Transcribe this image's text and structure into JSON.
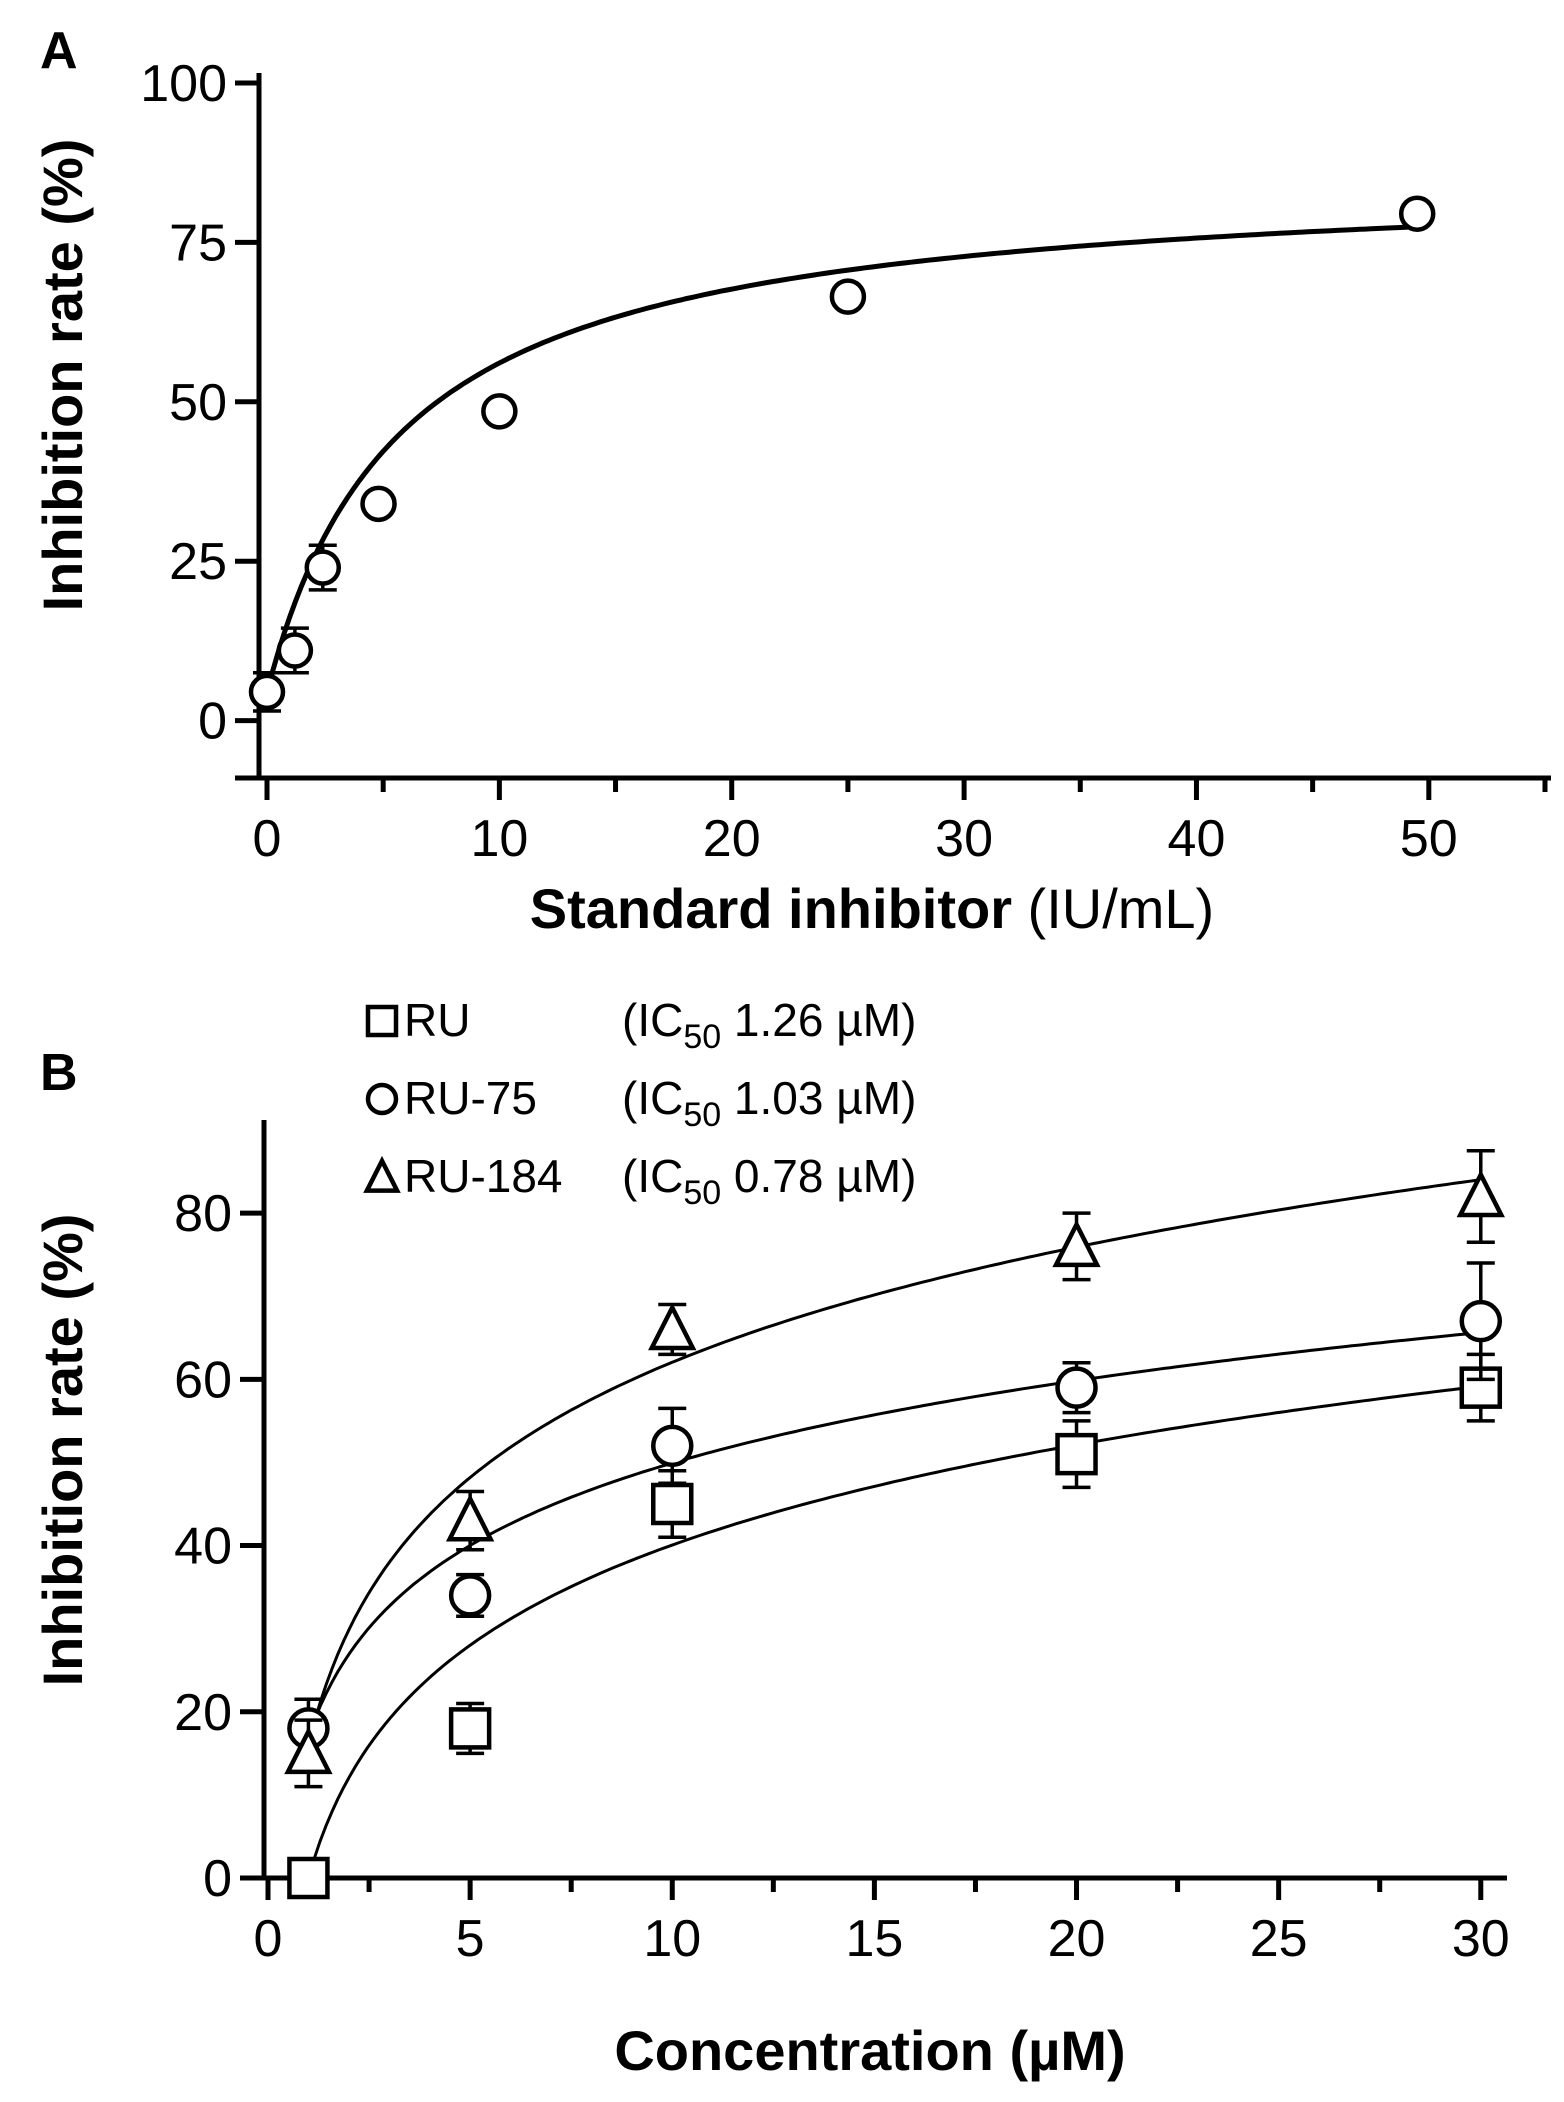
{
  "chart_data": [
    {
      "panel": "A",
      "type": "scatter",
      "xlabel_bold": "Standard inhibitor",
      "xlabel_unit": " (IU/mL)",
      "ylabel": "Inhibition rate (%)",
      "xlim": [
        0,
        55
      ],
      "ylim": [
        -9,
        100
      ],
      "xticks": [
        0,
        10,
        20,
        30,
        40,
        50
      ],
      "yticks": [
        0,
        25,
        50,
        75,
        100
      ],
      "x_minor_step": 5,
      "series": [
        {
          "name": "Standard inhibitor",
          "marker": "circle",
          "x": [
            0,
            1.2,
            2.4,
            4.8,
            10,
            25,
            49.5
          ],
          "y": [
            4.5,
            11,
            24,
            34,
            48.5,
            66.5,
            79.5
          ],
          "err": [
            3,
            3.5,
            3.5,
            0,
            0,
            0,
            0
          ]
        }
      ],
      "fit": {
        "model": "hyperbolic",
        "ymax": 86,
        "k": 5.8,
        "y0": 4.5,
        "xrange": [
          0,
          49.5
        ]
      }
    },
    {
      "panel": "B",
      "type": "scatter",
      "xlabel": "Concentration (µM)",
      "ylabel": "Inhibition rate (%)",
      "xlim": [
        0,
        30.5
      ],
      "ylim": [
        0,
        90
      ],
      "xticks": [
        0,
        5,
        10,
        15,
        20,
        25,
        30
      ],
      "yticks": [
        0,
        20,
        40,
        60,
        80
      ],
      "x_minor_step": 2.5,
      "legend": {
        "position": "top-left",
        "entries": [
          {
            "marker": "square",
            "name": "RU",
            "ic_prefix": "(IC",
            "ic_sub": "50",
            "ic_value": " 1.26 µM)"
          },
          {
            "marker": "circle",
            "name": "RU-75",
            "ic_prefix": "(IC",
            "ic_sub": "50",
            "ic_value": " 1.03 µM)"
          },
          {
            "marker": "triangle",
            "name": "RU-184",
            "ic_prefix": "(IC",
            "ic_sub": "50",
            "ic_value": " 0.78 µM)"
          }
        ]
      },
      "series": [
        {
          "name": "RU",
          "marker": "square",
          "x": [
            1,
            5,
            10,
            20,
            30
          ],
          "y": [
            0,
            18,
            45,
            51,
            59
          ],
          "err": [
            0,
            3,
            4,
            4,
            4
          ],
          "fit": {
            "a": 0,
            "b": 17.4
          }
        },
        {
          "name": "RU-75",
          "marker": "circle",
          "x": [
            1,
            5,
            10,
            20,
            30
          ],
          "y": [
            18,
            34,
            52,
            59,
            67
          ],
          "err": [
            3.5,
            2.5,
            4.5,
            3,
            7
          ],
          "fit": {
            "a": 17,
            "b": 14.3
          }
        },
        {
          "name": "RU-184",
          "marker": "triangle",
          "x": [
            1,
            5,
            10,
            20,
            30
          ],
          "y": [
            15,
            43,
            66,
            76,
            82
          ],
          "err": [
            4,
            3.5,
            3,
            4,
            5.5
          ],
          "fit": {
            "a": 16,
            "b": 20
          }
        }
      ]
    }
  ]
}
